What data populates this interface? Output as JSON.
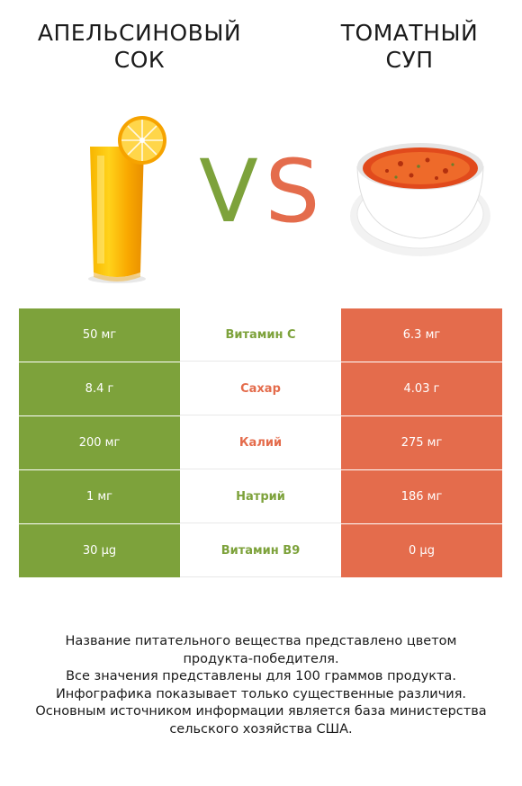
{
  "header": {
    "left_title_line1": "АПЕЛЬСИНОВЫЙ",
    "left_title_line2": "СОК",
    "right_title_line1": "ТОМАТНЫЙ",
    "right_title_line2": "СУП",
    "vs_v": "V",
    "vs_s": "S"
  },
  "colors": {
    "green": "#7da23b",
    "red": "#e46c4c"
  },
  "rows": [
    {
      "left": "50 мг",
      "name": "Витамин C",
      "right": "6.3 мг",
      "winner": "green"
    },
    {
      "left": "8.4 г",
      "name": "Сахар",
      "right": "4.03 г",
      "winner": "red"
    },
    {
      "left": "200 мг",
      "name": "Калий",
      "right": "275 мг",
      "winner": "red"
    },
    {
      "left": "1 мг",
      "name": "Натрий",
      "right": "186 мг",
      "winner": "green"
    },
    {
      "left": "30 µg",
      "name": "Витамин B9",
      "right": "0 µg",
      "winner": "green"
    }
  ],
  "footer": {
    "line1": "Название питательного вещества представлено цветом",
    "line2": "продукта-победителя.",
    "line3_pre": "Все значения представлены для ",
    "line3_num": "100",
    "line3_post": " граммов продукта.",
    "line4": "Инфографика показывает только существенные различия.",
    "line5": "Основным источником информации является база министерства",
    "line6": "сельского хозяйства США."
  }
}
